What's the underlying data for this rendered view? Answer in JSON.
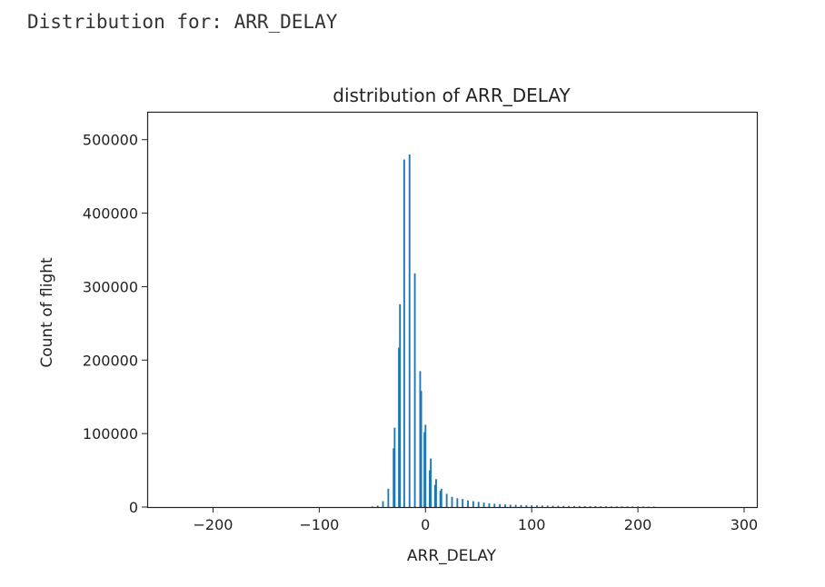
{
  "output": {
    "prefix": "Distribution for: ",
    "column": "ARR_DELAY"
  },
  "colors": {
    "bar": "#1f77b4",
    "axis": "#222222"
  },
  "chart_data": {
    "type": "bar",
    "title": "distribution of ARR_DELAY",
    "xlabel": "ARR_DELAY",
    "ylabel": "Count of flight",
    "xlim": [
      -262,
      312
    ],
    "ylim": [
      0,
      538000
    ],
    "xticks": [
      -200,
      -100,
      0,
      100,
      200,
      300
    ],
    "xtick_labels": [
      "−200",
      "−100",
      "0",
      "100",
      "200",
      "300"
    ],
    "yticks": [
      0,
      100000,
      200000,
      300000,
      400000,
      500000
    ],
    "ytick_labels": [
      "0",
      "100000",
      "200000",
      "300000",
      "400000",
      "500000"
    ],
    "bar_width": 1.6,
    "x": [
      -50,
      -45,
      -40,
      -35,
      -30,
      -29,
      -25,
      -24,
      -20,
      -19,
      -15,
      -14,
      -10,
      -9,
      -5,
      -4,
      0,
      -1,
      5,
      4,
      10,
      9,
      15,
      14,
      20,
      25,
      30,
      35,
      40,
      45,
      50,
      55,
      60,
      65,
      70,
      75,
      80,
      85,
      90,
      95,
      100,
      105,
      110,
      115,
      120,
      125,
      130,
      135,
      140,
      145,
      150,
      155,
      160,
      165,
      170,
      175,
      180,
      185,
      190,
      195,
      200,
      205,
      210,
      215
    ],
    "values": [
      800,
      2000,
      8000,
      25000,
      80000,
      108000,
      217000,
      276000,
      473000,
      0,
      480000,
      0,
      318000,
      0,
      185000,
      158000,
      112000,
      102000,
      66000,
      50000,
      38000,
      30000,
      25000,
      22000,
      18000,
      14000,
      12000,
      11000,
      9000,
      8000,
      7000,
      6000,
      5000,
      4500,
      4000,
      3500,
      3200,
      3000,
      2800,
      2600,
      2400,
      2200,
      2000,
      1900,
      1800,
      1700,
      1600,
      1500,
      1400,
      1300,
      1250,
      1200,
      1150,
      1100,
      1050,
      1000,
      950,
      900,
      850,
      800,
      750,
      700,
      650,
      600
    ]
  }
}
